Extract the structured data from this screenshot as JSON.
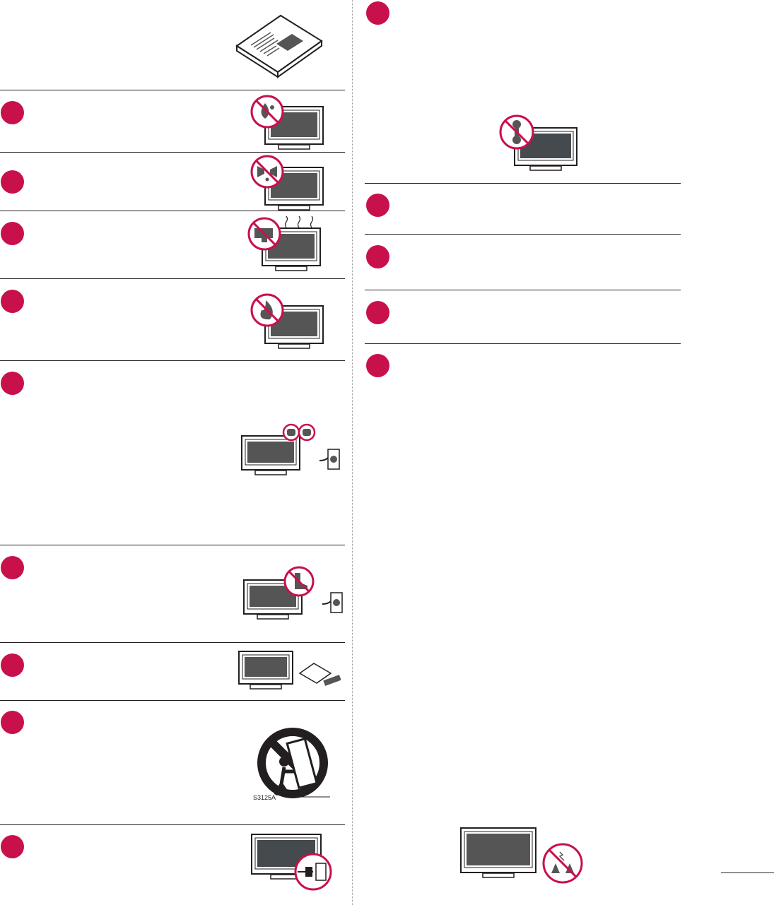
{
  "colors": {
    "accent": "#c8104a",
    "screen": "#555555",
    "screen_dark": "#454a4e",
    "line": "#231f20"
  },
  "left_column": {
    "items": [
      {
        "icon": "no-water-drip-icon"
      },
      {
        "icon": "no-liquid-splash-icon"
      },
      {
        "icon": "no-heat-source-icon"
      },
      {
        "icon": "no-fire-icon"
      },
      {
        "icon": "polarized-plug-icon"
      },
      {
        "icon": "no-stepping-on-cord-icon"
      },
      {
        "icon": "accessories-icon"
      },
      {
        "icon": "cart-tip-over-warning-icon",
        "label": "S3125A"
      },
      {
        "icon": "unplug-icon"
      }
    ]
  },
  "right_column": {
    "items": [
      {
        "icon": "no-servicing-icon"
      },
      {},
      {},
      {},
      {
        "icon": "no-loud-headphones-icon"
      }
    ]
  }
}
